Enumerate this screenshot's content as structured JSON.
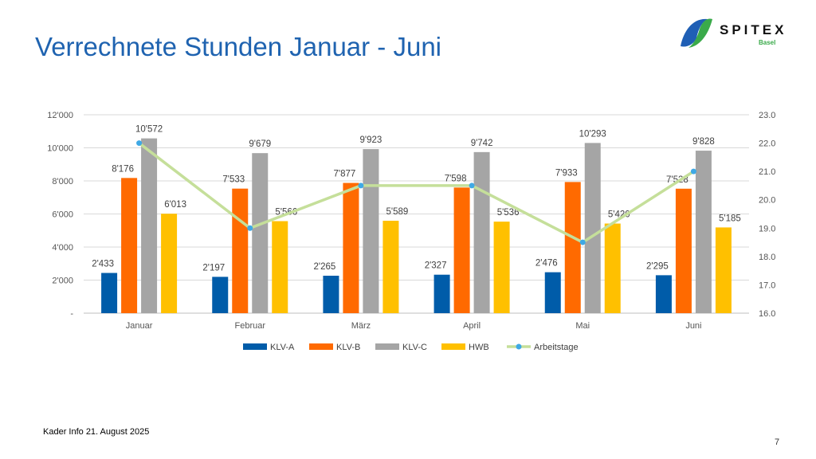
{
  "title": "Verrechnete Stunden Januar - Juni",
  "logo": {
    "name": "SPITEX",
    "sub": "Basel"
  },
  "footer": "Kader Info 21. August 2025",
  "page_number": "7",
  "colors": {
    "KLV-A": "#005ca9",
    "KLV-B": "#ff6a00",
    "KLV-C": "#a5a5a5",
    "HWB": "#ffc000",
    "Arbeitstage": "#c5df9a",
    "marker": "#3fa9e5"
  },
  "chart_data": {
    "type": "bar",
    "categories": [
      "Januar",
      "Februar",
      "März",
      "April",
      "Mai",
      "Juni"
    ],
    "series": [
      {
        "name": "KLV-A",
        "values": [
          2433,
          2197,
          2265,
          2327,
          2476,
          2295
        ],
        "labels": [
          "2'433",
          "2'197",
          "2'265",
          "2'327",
          "2'476",
          "2'295"
        ]
      },
      {
        "name": "KLV-B",
        "values": [
          8176,
          7533,
          7877,
          7598,
          7933,
          7528
        ],
        "labels": [
          "8'176",
          "7'533",
          "7'877",
          "7'598",
          "7'933",
          "7'528"
        ]
      },
      {
        "name": "KLV-C",
        "values": [
          10572,
          9679,
          9923,
          9742,
          10293,
          9828
        ],
        "labels": [
          "10'572",
          "9'679",
          "9'923",
          "9'742",
          "10'293",
          "9'828"
        ]
      },
      {
        "name": "HWB",
        "values": [
          6013,
          5566,
          5589,
          5536,
          5420,
          5185
        ],
        "labels": [
          "6'013",
          "5'566",
          "5'589",
          "5'536",
          "5'420",
          "5'185"
        ]
      }
    ],
    "line_series": {
      "name": "Arbeitstage",
      "type": "line",
      "axis": "right",
      "values": [
        22.0,
        19.0,
        20.5,
        20.5,
        18.5,
        21.0
      ]
    },
    "y_left": {
      "range": [
        0,
        12000
      ],
      "ticks": [
        "-",
        "2'000",
        "4'000",
        "6'000",
        "8'000",
        "10'000",
        "12'000"
      ]
    },
    "y_right": {
      "range": [
        16,
        23
      ],
      "ticks": [
        "16.0",
        "17.0",
        "18.0",
        "19.0",
        "20.0",
        "21.0",
        "22.0",
        "23.0"
      ]
    },
    "grid": true,
    "legend": "bottom"
  }
}
